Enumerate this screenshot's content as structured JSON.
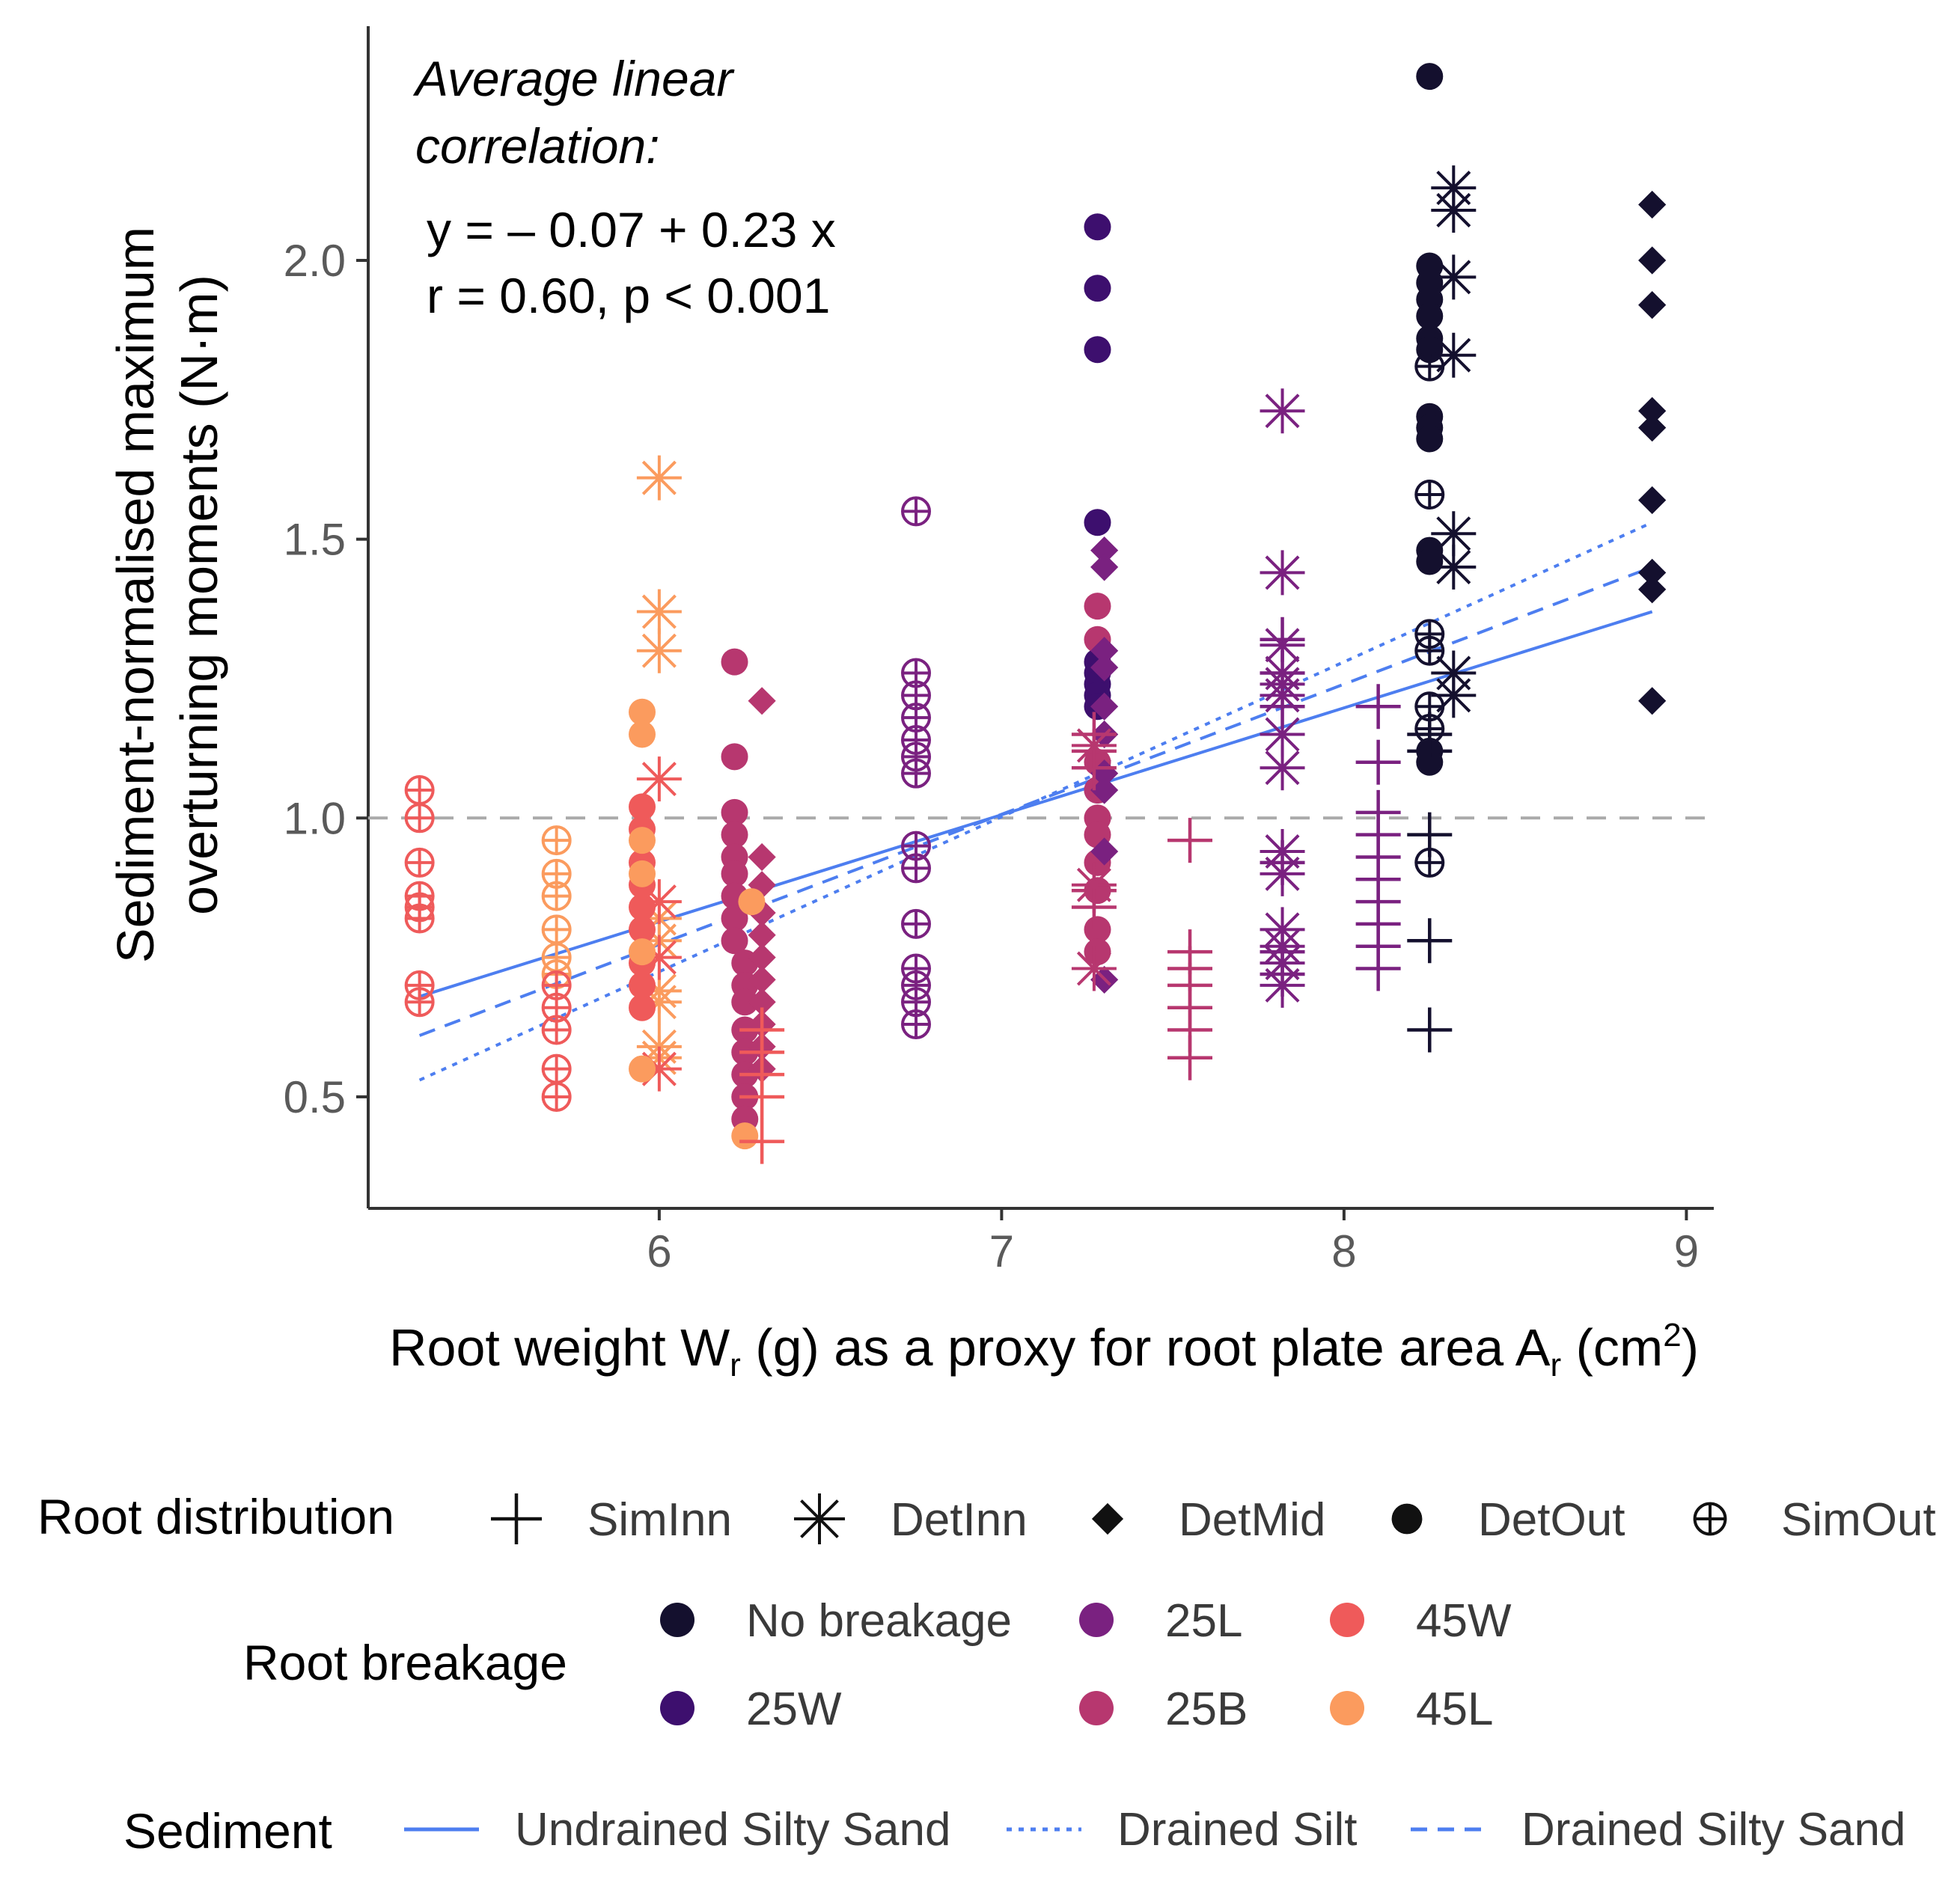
{
  "chart_data": {
    "type": "scatter",
    "annotation": {
      "heading_line1": "Average linear",
      "heading_line2": "correlation:",
      "equation": "y = – 0.07 + 0.23 x",
      "stats": "r = 0.60, p < 0.001"
    },
    "ylabel_line1": "Sediment-normalised maximum",
    "ylabel_line2": "overturning moments (N·m)",
    "xlabel_main": "Root weight  W",
    "xlabel_sub1": "r",
    "xlabel_mid": " (g) as a proxy for root plate area A",
    "xlabel_sub2": "r",
    "xlabel_open": " (cm",
    "xlabel_sup": "2",
    "xlabel_close": ")",
    "xlim": [
      5.15,
      9.08
    ],
    "ylim": [
      0.3,
      2.42
    ],
    "x_ticks": [
      6,
      7,
      8,
      9
    ],
    "x_tick_labels": [
      "6",
      "7",
      "8",
      "9"
    ],
    "y_ticks": [
      0.5,
      1.0,
      1.5,
      2.0
    ],
    "y_tick_labels": [
      "0.5",
      "1.0",
      "1.5",
      "2.0"
    ],
    "reference_line_y": 1.0,
    "breakage_colors": {
      "No breakage": "#14102e",
      "25W": "#3d0f6e",
      "25L": "#7a2180",
      "25B": "#b7376f",
      "45W": "#ef5a5a",
      "45L": "#fb9b5e"
    },
    "line_color": "#4d7ef0",
    "legend": {
      "root_distribution": {
        "title": "Root distribution",
        "items": [
          {
            "label": "SimInn",
            "shape": "plus"
          },
          {
            "label": "DetInn",
            "shape": "asterisk"
          },
          {
            "label": "DetMid",
            "shape": "diamond"
          },
          {
            "label": "DetOut",
            "shape": "circle"
          },
          {
            "label": "SimOut",
            "shape": "circle-plus"
          }
        ]
      },
      "root_breakage": {
        "title": "Root breakage",
        "items": [
          {
            "label": "No breakage",
            "color": "#14102e"
          },
          {
            "label": "25L",
            "color": "#7a2180"
          },
          {
            "label": "45W",
            "color": "#ef5a5a"
          },
          {
            "label": "25W",
            "color": "#3d0f6e"
          },
          {
            "label": "25B",
            "color": "#b7376f"
          },
          {
            "label": "45L",
            "color": "#fb9b5e"
          }
        ]
      },
      "sediment": {
        "title": "Sediment",
        "items": [
          {
            "label": "Undrained Silty Sand",
            "dash": "solid"
          },
          {
            "label": "Drained Silt",
            "dash": "dotted"
          },
          {
            "label": "Drained Silty Sand",
            "dash": "dashed"
          }
        ]
      }
    },
    "regression_lines": [
      {
        "name": "Undrained Silty Sand",
        "dash": "solid",
        "x": [
          5.3,
          8.9
        ],
        "y": [
          0.68,
          1.37
        ]
      },
      {
        "name": "Drained Silt",
        "dash": "dotted",
        "x": [
          5.3,
          8.9
        ],
        "y": [
          0.53,
          1.53
        ]
      },
      {
        "name": "Drained Silty Sand",
        "dash": "dashed",
        "x": [
          5.3,
          8.9
        ],
        "y": [
          0.61,
          1.45
        ]
      }
    ],
    "series": [
      {
        "name": "45W SimOut",
        "breakage": "45W",
        "shape": "circle-plus",
        "points": [
          [
            5.3,
            1.05
          ],
          [
            5.3,
            1.0
          ],
          [
            5.3,
            0.92
          ],
          [
            5.3,
            0.86
          ],
          [
            5.3,
            0.84
          ],
          [
            5.3,
            0.82
          ],
          [
            5.3,
            0.7
          ],
          [
            5.3,
            0.67
          ]
        ]
      },
      {
        "name": "45L SimOut",
        "breakage": "45L",
        "shape": "circle-plus",
        "points": [
          [
            5.7,
            0.96
          ],
          [
            5.7,
            0.9
          ],
          [
            5.7,
            0.86
          ],
          [
            5.7,
            0.8
          ],
          [
            5.7,
            0.75
          ],
          [
            5.7,
            0.72
          ]
        ]
      },
      {
        "name": "45W SimOut 2",
        "breakage": "45W",
        "shape": "circle-plus",
        "points": [
          [
            5.7,
            0.7
          ],
          [
            5.7,
            0.66
          ],
          [
            5.7,
            0.62
          ],
          [
            5.7,
            0.55
          ],
          [
            5.7,
            0.5
          ]
        ]
      },
      {
        "name": "45L DetInn",
        "breakage": "45L",
        "shape": "asterisk",
        "points": [
          [
            6.0,
            1.61
          ],
          [
            6.0,
            1.37
          ],
          [
            6.0,
            1.3
          ],
          [
            6.0,
            0.82
          ],
          [
            6.0,
            0.78
          ],
          [
            6.0,
            0.69
          ],
          [
            6.0,
            0.67
          ],
          [
            6.0,
            0.59
          ],
          [
            6.0,
            0.57
          ]
        ]
      },
      {
        "name": "45W DetInn",
        "breakage": "45W",
        "shape": "asterisk",
        "points": [
          [
            6.0,
            1.07
          ],
          [
            6.0,
            0.85
          ],
          [
            6.0,
            0.75
          ],
          [
            6.0,
            0.55
          ]
        ]
      },
      {
        "name": "45W DetOut",
        "breakage": "45W",
        "shape": "circle",
        "points": [
          [
            5.95,
            1.02
          ],
          [
            5.95,
            0.98
          ],
          [
            5.95,
            0.92
          ],
          [
            5.95,
            0.88
          ],
          [
            5.95,
            0.84
          ],
          [
            5.95,
            0.8
          ],
          [
            5.95,
            0.74
          ],
          [
            5.95,
            0.7
          ],
          [
            5.95,
            0.66
          ]
        ]
      },
      {
        "name": "45L DetOut",
        "breakage": "45L",
        "shape": "circle",
        "points": [
          [
            5.95,
            1.19
          ],
          [
            5.95,
            1.15
          ],
          [
            5.95,
            0.96
          ],
          [
            5.95,
            0.9
          ],
          [
            5.95,
            0.76
          ],
          [
            5.95,
            0.55
          ]
        ]
      },
      {
        "name": "25B DetOut",
        "breakage": "25B",
        "shape": "circle",
        "points": [
          [
            6.22,
            1.28
          ],
          [
            6.22,
            1.11
          ],
          [
            6.22,
            1.01
          ],
          [
            6.22,
            0.97
          ],
          [
            6.22,
            0.93
          ],
          [
            6.22,
            0.9
          ],
          [
            6.22,
            0.86
          ],
          [
            6.22,
            0.82
          ],
          [
            6.22,
            0.78
          ],
          [
            6.25,
            0.74
          ],
          [
            6.25,
            0.7
          ],
          [
            6.25,
            0.67
          ],
          [
            6.25,
            0.62
          ],
          [
            6.25,
            0.58
          ],
          [
            6.25,
            0.54
          ],
          [
            6.25,
            0.5
          ],
          [
            6.25,
            0.46
          ]
        ]
      },
      {
        "name": "25B DetMid",
        "breakage": "25B",
        "shape": "diamond",
        "points": [
          [
            6.3,
            1.21
          ],
          [
            6.3,
            0.93
          ],
          [
            6.3,
            0.88
          ],
          [
            6.3,
            0.83
          ],
          [
            6.3,
            0.79
          ],
          [
            6.3,
            0.75
          ],
          [
            6.3,
            0.71
          ],
          [
            6.3,
            0.67
          ],
          [
            6.3,
            0.63
          ],
          [
            6.3,
            0.59
          ],
          [
            6.3,
            0.55
          ]
        ]
      },
      {
        "name": "45L DetOut 2",
        "breakage": "45L",
        "shape": "circle",
        "points": [
          [
            6.27,
            0.85
          ],
          [
            6.25,
            0.43
          ]
        ]
      },
      {
        "name": "45W SimInn",
        "breakage": "45W",
        "shape": "plus",
        "points": [
          [
            6.3,
            0.62
          ],
          [
            6.3,
            0.58
          ],
          [
            6.3,
            0.54
          ],
          [
            6.3,
            0.5
          ],
          [
            6.3,
            0.42
          ]
        ]
      },
      {
        "name": "25L SimOut",
        "breakage": "25L",
        "shape": "circle-plus",
        "points": [
          [
            6.75,
            1.55
          ],
          [
            6.75,
            1.26
          ],
          [
            6.75,
            1.22
          ],
          [
            6.75,
            1.18
          ],
          [
            6.75,
            1.14
          ],
          [
            6.75,
            1.11
          ],
          [
            6.75,
            1.08
          ],
          [
            6.75,
            0.95
          ],
          [
            6.75,
            0.91
          ],
          [
            6.75,
            0.81
          ],
          [
            6.75,
            0.73
          ],
          [
            6.75,
            0.7
          ],
          [
            6.75,
            0.67
          ],
          [
            6.75,
            0.63
          ]
        ]
      },
      {
        "name": "25W DetOut",
        "breakage": "25W",
        "shape": "circle",
        "points": [
          [
            7.28,
            2.06
          ],
          [
            7.28,
            1.95
          ],
          [
            7.28,
            1.84
          ],
          [
            7.28,
            1.53
          ],
          [
            7.28,
            1.28
          ],
          [
            7.28,
            1.26
          ],
          [
            7.28,
            1.24
          ],
          [
            7.28,
            1.22
          ],
          [
            7.28,
            1.2
          ],
          [
            7.28,
            1.05
          ]
        ]
      },
      {
        "name": "25B DetOut 2",
        "breakage": "25B",
        "shape": "circle",
        "points": [
          [
            7.28,
            1.38
          ],
          [
            7.28,
            1.32
          ],
          [
            7.28,
            1.1
          ],
          [
            7.28,
            1.05
          ],
          [
            7.28,
            1.0
          ],
          [
            7.28,
            0.97
          ],
          [
            7.28,
            0.92
          ],
          [
            7.28,
            0.87
          ],
          [
            7.28,
            0.8
          ],
          [
            7.28,
            0.76
          ]
        ]
      },
      {
        "name": "25L DetMid",
        "breakage": "25L",
        "shape": "diamond",
        "points": [
          [
            7.3,
            1.48
          ],
          [
            7.3,
            1.45
          ],
          [
            7.3,
            1.3
          ],
          [
            7.3,
            1.27
          ],
          [
            7.3,
            1.2
          ],
          [
            7.3,
            1.15
          ],
          [
            7.3,
            1.08
          ],
          [
            7.3,
            1.05
          ],
          [
            7.3,
            0.94
          ],
          [
            7.3,
            0.71
          ]
        ]
      },
      {
        "name": "25B SimInn",
        "breakage": "25B",
        "shape": "plus",
        "points": [
          [
            7.27,
            1.15
          ],
          [
            7.27,
            1.12
          ],
          [
            7.27,
            1.09
          ],
          [
            7.27,
            0.87
          ],
          [
            7.27,
            0.84
          ]
        ]
      },
      {
        "name": "25B DetInn",
        "breakage": "25B",
        "shape": "asterisk",
        "points": [
          [
            7.27,
            1.13
          ],
          [
            7.27,
            0.88
          ],
          [
            7.27,
            0.73
          ]
        ]
      },
      {
        "name": "25B SimInn 2",
        "breakage": "25B",
        "shape": "plus",
        "points": [
          [
            7.55,
            0.96
          ],
          [
            7.55,
            0.76
          ],
          [
            7.55,
            0.73
          ],
          [
            7.55,
            0.7
          ],
          [
            7.55,
            0.66
          ],
          [
            7.55,
            0.62
          ],
          [
            7.55,
            0.57
          ]
        ]
      },
      {
        "name": "25L DetInn",
        "breakage": "25L",
        "shape": "asterisk",
        "points": [
          [
            7.82,
            1.73
          ],
          [
            7.82,
            1.44
          ],
          [
            7.82,
            1.31
          ],
          [
            7.82,
            1.26
          ],
          [
            7.82,
            1.24
          ],
          [
            7.82,
            1.22
          ],
          [
            7.82,
            1.15
          ],
          [
            7.82,
            1.09
          ],
          [
            7.82,
            0.94
          ],
          [
            7.82,
            0.9
          ],
          [
            7.82,
            0.8
          ],
          [
            7.82,
            0.77
          ],
          [
            7.82,
            0.74
          ],
          [
            7.82,
            0.7
          ]
        ]
      },
      {
        "name": "25L SimInn",
        "breakage": "25L",
        "shape": "plus",
        "points": [
          [
            7.82,
            1.32
          ],
          [
            7.82,
            1.26
          ],
          [
            7.82,
            1.2
          ],
          [
            7.82,
            0.92
          ],
          [
            7.82,
            0.76
          ],
          [
            7.82,
            0.72
          ]
        ]
      },
      {
        "name": "25L SimInn 2",
        "breakage": "25L",
        "shape": "plus",
        "points": [
          [
            8.1,
            1.2
          ],
          [
            8.1,
            1.1
          ],
          [
            8.1,
            1.01
          ],
          [
            8.1,
            0.97
          ],
          [
            8.1,
            0.93
          ],
          [
            8.1,
            0.89
          ],
          [
            8.1,
            0.85
          ],
          [
            8.1,
            0.81
          ],
          [
            8.1,
            0.77
          ],
          [
            8.1,
            0.73
          ]
        ]
      },
      {
        "name": "No breakage DetOut",
        "breakage": "No breakage",
        "shape": "circle",
        "points": [
          [
            8.25,
            2.33
          ],
          [
            8.25,
            1.99
          ],
          [
            8.25,
            1.96
          ],
          [
            8.25,
            1.93
          ],
          [
            8.25,
            1.9
          ],
          [
            8.25,
            1.86
          ],
          [
            8.25,
            1.84
          ],
          [
            8.25,
            1.72
          ],
          [
            8.25,
            1.7
          ],
          [
            8.25,
            1.68
          ],
          [
            8.25,
            1.48
          ],
          [
            8.25,
            1.46
          ],
          [
            8.25,
            1.12
          ],
          [
            8.25,
            1.1
          ]
        ]
      },
      {
        "name": "No breakage DetInn",
        "breakage": "No breakage",
        "shape": "asterisk",
        "points": [
          [
            8.32,
            2.13
          ],
          [
            8.32,
            2.09
          ],
          [
            8.32,
            1.97
          ],
          [
            8.32,
            1.83
          ],
          [
            8.32,
            1.51
          ],
          [
            8.32,
            1.45
          ],
          [
            8.32,
            1.26
          ],
          [
            8.32,
            1.22
          ]
        ]
      },
      {
        "name": "No breakage SimOut",
        "breakage": "No breakage",
        "shape": "circle-plus",
        "points": [
          [
            8.25,
            1.81
          ],
          [
            8.25,
            1.58
          ],
          [
            8.25,
            1.33
          ],
          [
            8.25,
            1.3
          ],
          [
            8.25,
            1.2
          ],
          [
            8.25,
            1.16
          ],
          [
            8.25,
            0.92
          ]
        ]
      },
      {
        "name": "No breakage SimInn",
        "breakage": "No breakage",
        "shape": "plus",
        "points": [
          [
            8.25,
            1.15
          ],
          [
            8.25,
            1.12
          ],
          [
            8.25,
            0.97
          ],
          [
            8.25,
            0.78
          ],
          [
            8.25,
            0.62
          ]
        ]
      },
      {
        "name": "No breakage DetMid",
        "breakage": "No breakage",
        "shape": "diamond",
        "points": [
          [
            8.9,
            2.1
          ],
          [
            8.9,
            2.0
          ],
          [
            8.9,
            1.92
          ],
          [
            8.9,
            1.73
          ],
          [
            8.9,
            1.7
          ],
          [
            8.9,
            1.57
          ],
          [
            8.9,
            1.44
          ],
          [
            8.9,
            1.41
          ],
          [
            8.9,
            1.21
          ]
        ]
      }
    ]
  }
}
